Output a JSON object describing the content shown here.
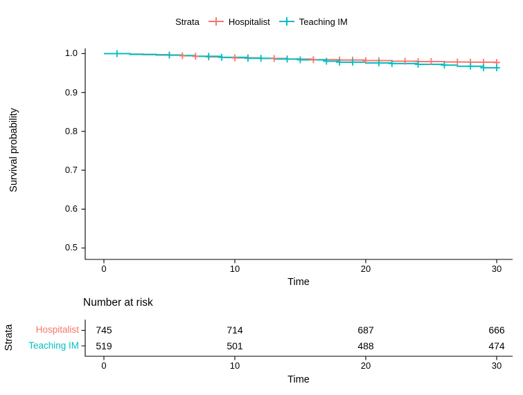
{
  "chart_data": {
    "type": "line",
    "subtype": "kaplan-meier-step-survival",
    "title": "",
    "xlabel": "Time",
    "ylabel": "Survival probability",
    "xlim": [
      0,
      30
    ],
    "ylim": [
      0.5,
      1.0
    ],
    "grid": false,
    "legend_title": "Strata",
    "legend_position": "top",
    "x_ticks": [
      0,
      10,
      20,
      30
    ],
    "x_tick_labels": [
      "0",
      "10",
      "20",
      "30"
    ],
    "y_ticks": [
      1.0,
      0.9,
      0.8,
      0.7,
      0.6,
      0.5
    ],
    "y_tick_labels": [
      "1.0",
      "0.9",
      "0.8",
      "0.7",
      "0.6",
      "0.5"
    ],
    "series": [
      {
        "name": "Hospitalist",
        "color": "#F8766D",
        "start": [
          0,
          1.0
        ],
        "steps": [
          [
            2,
            0.9987
          ],
          [
            3,
            0.9973
          ],
          [
            5,
            0.996
          ],
          [
            6,
            0.9945
          ],
          [
            7,
            0.993
          ],
          [
            8,
            0.9915
          ],
          [
            9,
            0.99
          ],
          [
            10,
            0.989
          ],
          [
            12,
            0.9875
          ],
          [
            14,
            0.986
          ],
          [
            16,
            0.9845
          ],
          [
            18,
            0.9835
          ],
          [
            20,
            0.982
          ],
          [
            22,
            0.9805
          ],
          [
            24,
            0.9795
          ],
          [
            26,
            0.9785
          ],
          [
            28,
            0.978
          ],
          [
            30,
            0.977
          ]
        ],
        "censor_times": [
          5,
          6,
          7,
          8,
          10,
          11,
          13,
          14,
          16,
          18,
          19,
          20,
          21,
          23,
          24,
          25,
          27,
          28,
          29,
          30
        ],
        "final_survival": 0.977
      },
      {
        "name": "Teaching IM",
        "color": "#00BFC4",
        "start": [
          0,
          1.0
        ],
        "steps": [
          [
            2,
            0.998
          ],
          [
            4,
            0.9965
          ],
          [
            6,
            0.995
          ],
          [
            7,
            0.993
          ],
          [
            9,
            0.9905
          ],
          [
            11,
            0.988
          ],
          [
            13,
            0.986
          ],
          [
            15,
            0.984
          ],
          [
            17,
            0.9805
          ],
          [
            18,
            0.978
          ],
          [
            20,
            0.976
          ],
          [
            22,
            0.9745
          ],
          [
            24,
            0.9725
          ],
          [
            26,
            0.9705
          ],
          [
            27,
            0.9675
          ],
          [
            29,
            0.9635
          ]
        ],
        "censor_times": [
          1,
          5,
          8,
          9,
          11,
          12,
          14,
          15,
          17,
          18,
          19,
          21,
          22,
          24,
          26,
          28,
          29,
          30
        ],
        "final_survival": 0.963
      }
    ],
    "risk_table": {
      "title": "Number at risk",
      "axis_label": "Strata",
      "xlabel": "Time",
      "time_points": [
        0,
        10,
        20,
        30
      ],
      "x_tick_labels": [
        "0",
        "10",
        "20",
        "30"
      ],
      "rows": [
        {
          "name": "Hospitalist",
          "color": "#F8766D",
          "values": [
            745,
            714,
            687,
            666
          ]
        },
        {
          "name": "Teaching IM",
          "color": "#00BFC4",
          "values": [
            519,
            501,
            488,
            474
          ]
        }
      ]
    }
  }
}
